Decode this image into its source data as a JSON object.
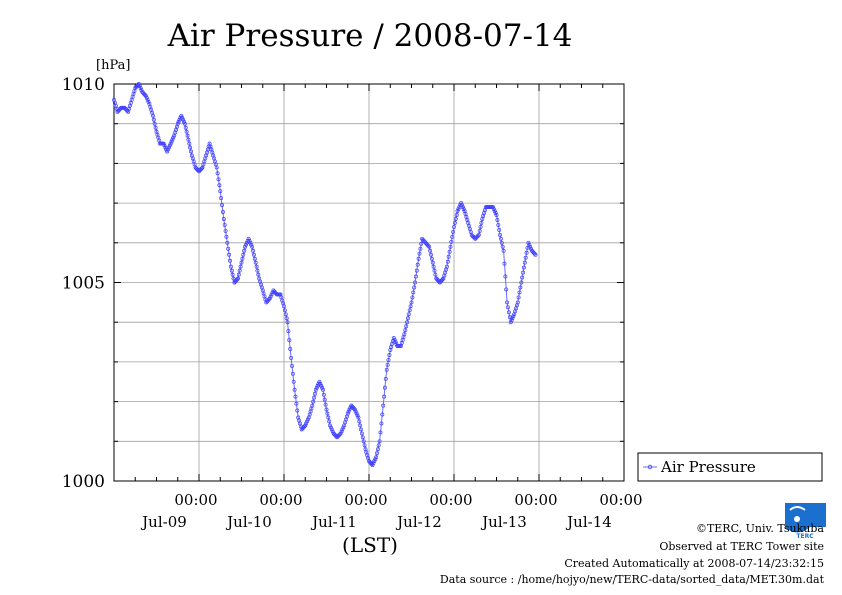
{
  "chart_data": {
    "type": "line",
    "title": "Air Pressure / 2008-07-14",
    "unit_label": "[hPa]",
    "xlabel": "(LST)",
    "ylabel": "",
    "ylim": [
      1000,
      1010
    ],
    "yticks_major": [
      1000,
      1005,
      1010
    ],
    "xlim": [
      0,
      144
    ],
    "xticks": [
      {
        "time": "00:00",
        "date": "Jul-09"
      },
      {
        "time": "00:00",
        "date": "Jul-10"
      },
      {
        "time": "00:00",
        "date": "Jul-11"
      },
      {
        "time": "00:00",
        "date": "Jul-12"
      },
      {
        "time": "00:00",
        "date": "Jul-13"
      },
      {
        "time": "00:00",
        "date": "Jul-14"
      }
    ],
    "grid": true,
    "legend_position": "right",
    "series": [
      {
        "name": "Air Pressure",
        "color": "#0000ff",
        "points": [
          [
            0,
            1009.6
          ],
          [
            1,
            1009.3
          ],
          [
            2,
            1009.4
          ],
          [
            3,
            1009.4
          ],
          [
            4,
            1009.3
          ],
          [
            5,
            1009.6
          ],
          [
            6,
            1009.9
          ],
          [
            7,
            1010.0
          ],
          [
            8,
            1009.8
          ],
          [
            9,
            1009.7
          ],
          [
            10,
            1009.5
          ],
          [
            11,
            1009.2
          ],
          [
            12,
            1008.8
          ],
          [
            13,
            1008.5
          ],
          [
            14,
            1008.5
          ],
          [
            15,
            1008.3
          ],
          [
            16,
            1008.5
          ],
          [
            17,
            1008.7
          ],
          [
            18,
            1009.0
          ],
          [
            19,
            1009.2
          ],
          [
            20,
            1009.0
          ],
          [
            21,
            1008.6
          ],
          [
            22,
            1008.2
          ],
          [
            23,
            1007.9
          ],
          [
            24,
            1007.8
          ],
          [
            25,
            1007.9
          ],
          [
            26,
            1008.2
          ],
          [
            27,
            1008.5
          ],
          [
            28,
            1008.2
          ],
          [
            29,
            1007.9
          ],
          [
            30,
            1007.3
          ],
          [
            31,
            1006.6
          ],
          [
            32,
            1006.0
          ],
          [
            33,
            1005.4
          ],
          [
            34,
            1005.0
          ],
          [
            35,
            1005.1
          ],
          [
            36,
            1005.5
          ],
          [
            37,
            1005.9
          ],
          [
            38,
            1006.1
          ],
          [
            39,
            1005.9
          ],
          [
            40,
            1005.5
          ],
          [
            41,
            1005.1
          ],
          [
            42,
            1004.8
          ],
          [
            43,
            1004.5
          ],
          [
            44,
            1004.6
          ],
          [
            45,
            1004.8
          ],
          [
            46,
            1004.7
          ],
          [
            47,
            1004.7
          ],
          [
            48,
            1004.4
          ],
          [
            49,
            1004.0
          ],
          [
            50,
            1003.1
          ],
          [
            51,
            1002.3
          ],
          [
            52,
            1001.6
          ],
          [
            53,
            1001.3
          ],
          [
            54,
            1001.4
          ],
          [
            55,
            1001.6
          ],
          [
            56,
            1001.9
          ],
          [
            57,
            1002.3
          ],
          [
            58,
            1002.5
          ],
          [
            59,
            1002.3
          ],
          [
            60,
            1001.8
          ],
          [
            61,
            1001.4
          ],
          [
            62,
            1001.2
          ],
          [
            63,
            1001.1
          ],
          [
            64,
            1001.2
          ],
          [
            65,
            1001.4
          ],
          [
            66,
            1001.7
          ],
          [
            67,
            1001.9
          ],
          [
            68,
            1001.8
          ],
          [
            69,
            1001.6
          ],
          [
            70,
            1001.2
          ],
          [
            71,
            1000.8
          ],
          [
            72,
            1000.5
          ],
          [
            73,
            1000.4
          ],
          [
            74,
            1000.6
          ],
          [
            75,
            1001.0
          ],
          [
            76,
            1001.9
          ],
          [
            77,
            1002.8
          ],
          [
            78,
            1003.3
          ],
          [
            79,
            1003.6
          ],
          [
            80,
            1003.4
          ],
          [
            81,
            1003.4
          ],
          [
            82,
            1003.7
          ],
          [
            83,
            1004.1
          ],
          [
            84,
            1004.5
          ],
          [
            85,
            1005.0
          ],
          [
            86,
            1005.6
          ],
          [
            87,
            1006.1
          ],
          [
            88,
            1006.0
          ],
          [
            89,
            1005.9
          ],
          [
            90,
            1005.5
          ],
          [
            91,
            1005.1
          ],
          [
            92,
            1005.0
          ],
          [
            93,
            1005.1
          ],
          [
            94,
            1005.4
          ],
          [
            95,
            1005.9
          ],
          [
            96,
            1006.4
          ],
          [
            97,
            1006.8
          ],
          [
            98,
            1007.0
          ],
          [
            99,
            1006.8
          ],
          [
            100,
            1006.5
          ],
          [
            101,
            1006.2
          ],
          [
            102,
            1006.1
          ],
          [
            103,
            1006.2
          ],
          [
            104,
            1006.6
          ],
          [
            105,
            1006.9
          ],
          [
            106,
            1006.9
          ],
          [
            107,
            1006.9
          ],
          [
            108,
            1006.7
          ],
          [
            109,
            1006.2
          ],
          [
            110,
            1005.8
          ],
          [
            111,
            1004.5
          ],
          [
            112,
            1004.0
          ],
          [
            113,
            1004.2
          ],
          [
            114,
            1004.5
          ],
          [
            115,
            1005.0
          ],
          [
            116,
            1005.5
          ],
          [
            117,
            1006.0
          ],
          [
            118,
            1005.8
          ],
          [
            119,
            1005.7
          ]
        ]
      }
    ]
  },
  "footer": {
    "copyright": "©TERC, Univ. Tsukuba",
    "observed": "Observed at TERC Tower site",
    "created": "Created Automatically at 2008-07-14/23:32:15",
    "source": "Data source : /home/hojyo/new/TERC-data/sorted_data/MET.30m.dat"
  },
  "logo": {
    "text": "TERC",
    "icon": "terc-logo-icon"
  }
}
